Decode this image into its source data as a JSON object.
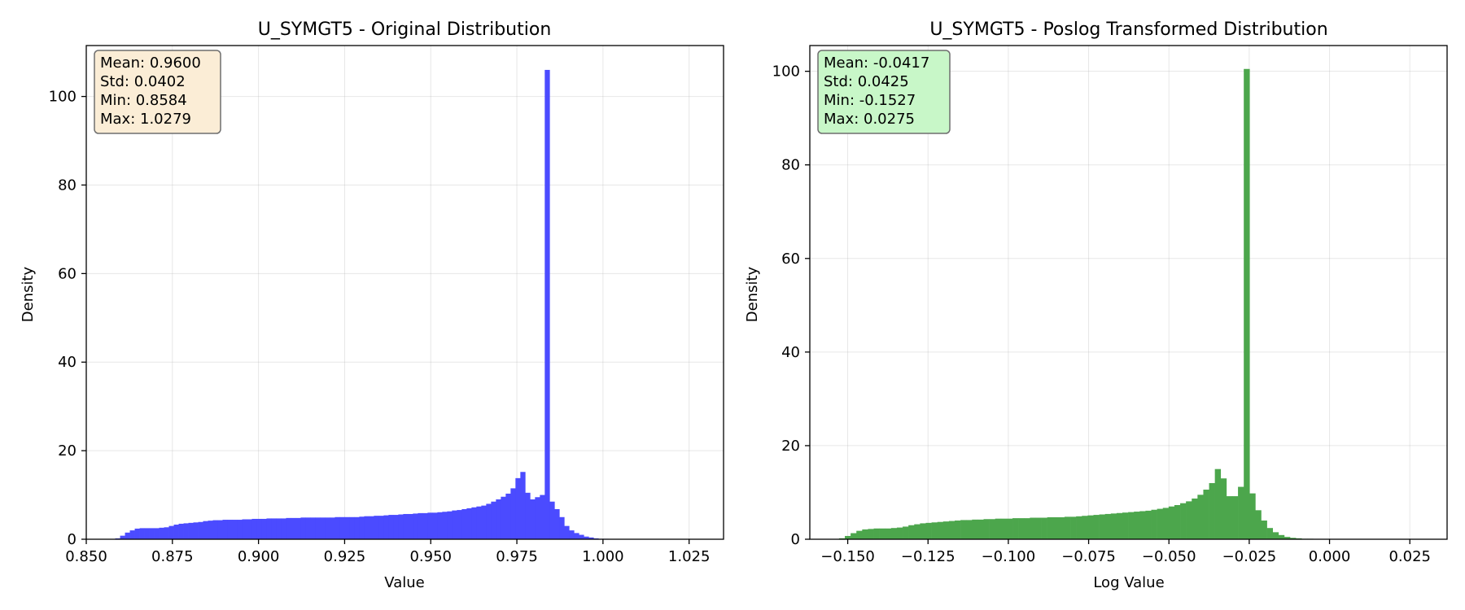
{
  "chart_data": [
    {
      "type": "bar",
      "title": "U_SYMGT5 - Original Distribution",
      "xlabel": "Value",
      "ylabel": "Density",
      "xlim": [
        0.85,
        1.035
      ],
      "ylim": [
        0,
        111.5
      ],
      "xticks": [
        0.85,
        0.875,
        0.9,
        0.925,
        0.95,
        0.975,
        1.0,
        1.025
      ],
      "xtick_labels": [
        "0.850",
        "0.875",
        "0.900",
        "0.925",
        "0.950",
        "0.975",
        "1.000",
        "1.025"
      ],
      "yticks": [
        0,
        20,
        40,
        60,
        80,
        100
      ],
      "ytick_labels": [
        "0",
        "20",
        "40",
        "60",
        "80",
        "100"
      ],
      "grid": true,
      "bar_color": "#4b4bff",
      "stats_box_color": "#fbedd6",
      "stats": [
        "Mean: 0.9600",
        "Std: 0.0402",
        "Min: 0.8584",
        "Max: 1.0279"
      ],
      "bins": {
        "start": 0.8584,
        "width": 0.001417,
        "values": [
          0.2,
          0.8,
          1.5,
          2.0,
          2.4,
          2.5,
          2.5,
          2.5,
          2.5,
          2.6,
          2.7,
          3.0,
          3.3,
          3.5,
          3.6,
          3.7,
          3.8,
          3.9,
          4.1,
          4.2,
          4.3,
          4.3,
          4.4,
          4.4,
          4.4,
          4.4,
          4.5,
          4.5,
          4.6,
          4.6,
          4.6,
          4.7,
          4.7,
          4.7,
          4.7,
          4.8,
          4.8,
          4.8,
          4.9,
          4.9,
          4.9,
          4.9,
          4.9,
          4.9,
          4.9,
          5.0,
          5.0,
          5.0,
          5.0,
          5.0,
          5.1,
          5.2,
          5.2,
          5.3,
          5.3,
          5.4,
          5.5,
          5.5,
          5.6,
          5.7,
          5.7,
          5.8,
          5.9,
          5.9,
          6.0,
          6.0,
          6.1,
          6.2,
          6.3,
          6.5,
          6.6,
          6.8,
          7.0,
          7.2,
          7.4,
          7.6,
          8.0,
          8.5,
          9.0,
          9.6,
          10.3,
          11.5,
          13.8,
          15.2,
          10.5,
          9.0,
          9.5,
          10.0,
          106.0,
          8.5,
          6.8,
          5.0,
          3.0,
          2.0,
          1.4,
          1.0,
          0.6,
          0.4,
          0.2,
          0.1,
          0.1
        ]
      }
    },
    {
      "type": "bar",
      "title": "U_SYMGT5 - Poslog Transformed Distribution",
      "xlabel": "Log Value",
      "ylabel": "Density",
      "xlim": [
        -0.1618,
        0.0366
      ],
      "ylim": [
        0,
        105.5
      ],
      "xticks": [
        -0.15,
        -0.125,
        -0.1,
        -0.075,
        -0.05,
        -0.025,
        0.0,
        0.025
      ],
      "xtick_labels": [
        "−0.150",
        "−0.125",
        "−0.100",
        "−0.075",
        "−0.050",
        "−0.025",
        "0.000",
        "0.025"
      ],
      "yticks": [
        0,
        20,
        40,
        60,
        80,
        100
      ],
      "ytick_labels": [
        "0",
        "20",
        "40",
        "60",
        "80",
        "100"
      ],
      "grid": true,
      "bar_color": "#4ca64c",
      "stats_box_color": "#c8f7c8",
      "stats": [
        "Mean: -0.0417",
        "Std: 0.0425",
        "Min: -0.1527",
        "Max: 0.0275"
      ],
      "bins": {
        "start": -0.1527,
        "width": 0.0018,
        "values": [
          0.2,
          0.7,
          1.3,
          1.8,
          2.1,
          2.2,
          2.3,
          2.3,
          2.3,
          2.4,
          2.5,
          2.7,
          3.0,
          3.2,
          3.4,
          3.5,
          3.6,
          3.7,
          3.8,
          3.9,
          4.0,
          4.1,
          4.1,
          4.2,
          4.2,
          4.3,
          4.3,
          4.4,
          4.4,
          4.4,
          4.5,
          4.5,
          4.5,
          4.6,
          4.6,
          4.6,
          4.7,
          4.7,
          4.7,
          4.8,
          4.8,
          4.9,
          5.0,
          5.1,
          5.2,
          5.3,
          5.4,
          5.5,
          5.6,
          5.7,
          5.8,
          5.9,
          6.0,
          6.1,
          6.3,
          6.5,
          6.7,
          7.0,
          7.3,
          7.7,
          8.1,
          8.7,
          9.5,
          10.6,
          12.0,
          15.0,
          13.0,
          9.2,
          9.2,
          11.2,
          100.5,
          9.8,
          6.2,
          4.0,
          2.4,
          1.5,
          0.9,
          0.5,
          0.3,
          0.2,
          0.1,
          0.1
        ]
      }
    }
  ]
}
